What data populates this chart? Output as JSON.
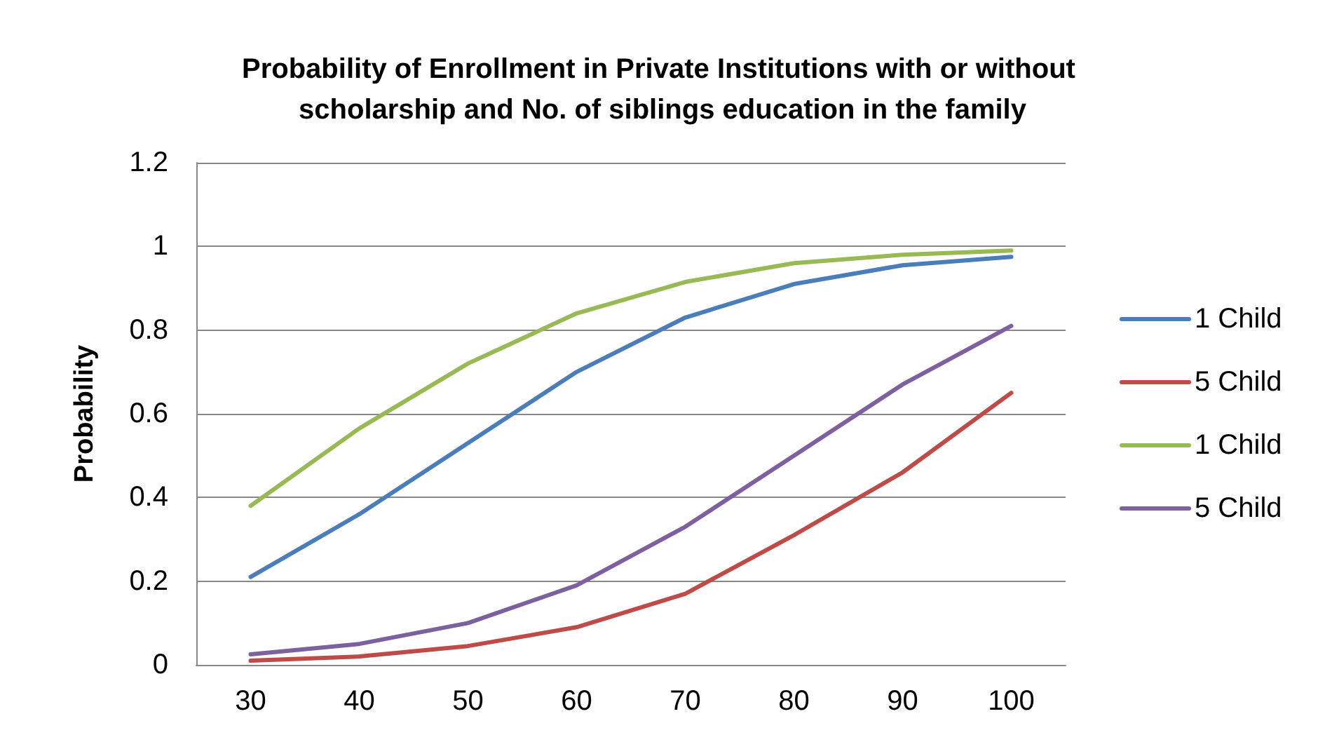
{
  "chart_data": {
    "type": "line",
    "title": "Probability of Enrollment in Private Institutions with or without scholarship and No. of siblings education in the family",
    "ylabel": "Probability",
    "categories": [
      "30",
      "40",
      "50",
      "60",
      "70",
      "80",
      "90",
      "100"
    ],
    "series": [
      {
        "name": "1 Child",
        "color": "#4a7ebb",
        "values": [
          0.21,
          0.36,
          0.53,
          0.7,
          0.83,
          0.91,
          0.955,
          0.975
        ]
      },
      {
        "name": "5 Child",
        "color": "#be4b48",
        "values": [
          0.01,
          0.02,
          0.045,
          0.09,
          0.17,
          0.31,
          0.46,
          0.65
        ]
      },
      {
        "name": "1 Child",
        "color": "#98b954",
        "values": [
          0.38,
          0.565,
          0.72,
          0.84,
          0.915,
          0.96,
          0.98,
          0.99
        ]
      },
      {
        "name": "5 Child",
        "color": "#7d60a0",
        "values": [
          0.025,
          0.05,
          0.1,
          0.19,
          0.33,
          0.5,
          0.67,
          0.81
        ]
      }
    ],
    "ylim": [
      0,
      1.2
    ],
    "yticks": [
      0,
      0.2,
      0.4,
      0.6,
      0.8,
      1,
      1.2
    ],
    "grid": "y",
    "legend": "right"
  }
}
